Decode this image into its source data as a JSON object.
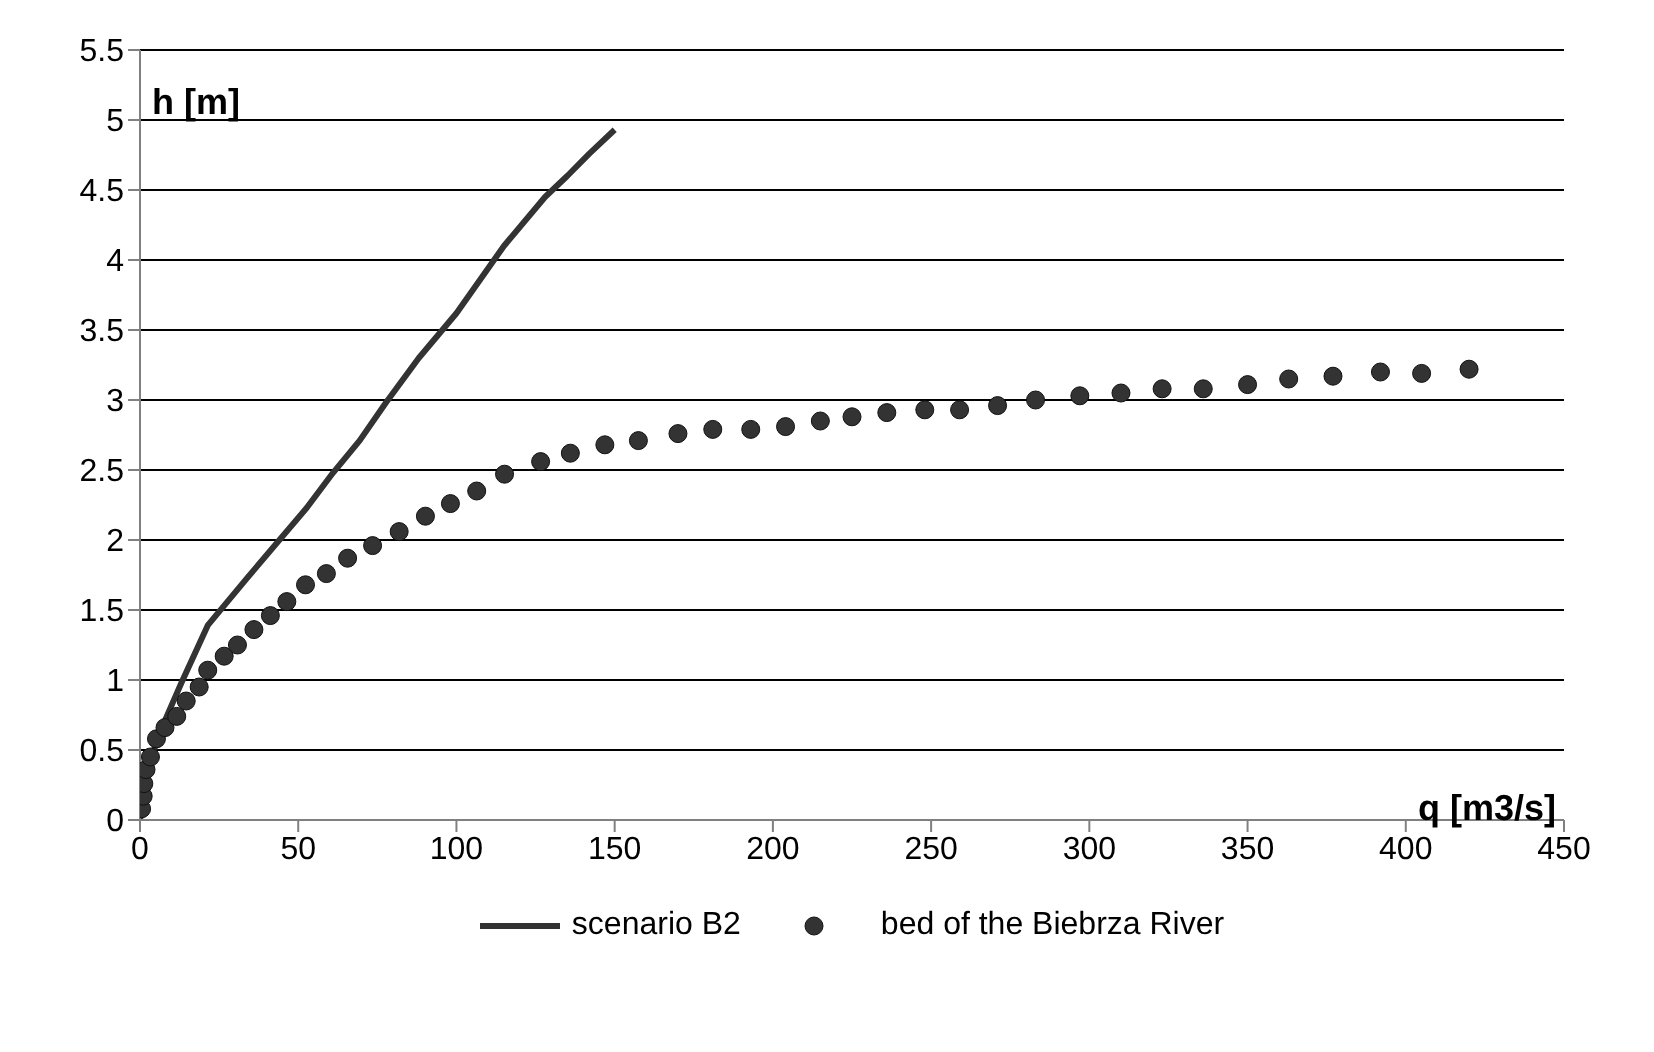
{
  "chart_data": {
    "type": "scatter",
    "xlabel": "q [m3/s]",
    "ylabel": "h [m]",
    "xlim": [
      0,
      450
    ],
    "xticks": [
      0,
      50,
      100,
      150,
      200,
      250,
      300,
      350,
      400,
      450
    ],
    "ylim": [
      0,
      5.5
    ],
    "yticks": [
      0,
      0.5,
      1,
      1.5,
      2,
      2.5,
      3,
      3.5,
      4,
      4.5,
      5,
      5.5
    ],
    "grid": "y",
    "legend": "bottom",
    "series": [
      {
        "name": "scenario B2",
        "type": "line",
        "color": "#333333",
        "line_style": "solid",
        "x": [
          0,
          2.7,
          6.9,
          13.1,
          21.4,
          33.9,
          52.7,
          61,
          69.4,
          77.7,
          88.1,
          100,
          115,
          128,
          135,
          142,
          150
        ],
        "values": [
          0,
          0.39,
          0.66,
          0.98,
          1.39,
          1.73,
          2.23,
          2.48,
          2.71,
          2.98,
          3.3,
          3.62,
          4.1,
          4.45,
          4.6,
          4.76,
          4.93
        ]
      },
      {
        "name": "bed of the Biebrza River",
        "marker": "circle",
        "color": "#333333",
        "x": [
          0.5,
          1,
          1.2,
          1.9,
          3.3,
          5.2,
          7.9,
          11.6,
          14.6,
          18.7,
          21.4,
          26.6,
          30.8,
          36,
          41.2,
          46.4,
          52.3,
          58.9,
          65.6,
          73.5,
          81.9,
          90.2,
          98.1,
          106.4,
          115.2,
          126.6,
          136,
          146.9,
          157.5,
          170,
          181,
          193,
          204,
          215,
          225,
          236,
          248,
          259,
          271,
          283,
          297,
          310,
          323,
          336,
          350,
          363,
          377,
          392,
          405,
          420
        ],
        "values": [
          0.08,
          0.17,
          0.26,
          0.36,
          0.45,
          0.58,
          0.66,
          0.74,
          0.85,
          0.95,
          1.07,
          1.17,
          1.25,
          1.36,
          1.46,
          1.56,
          1.68,
          1.76,
          1.87,
          1.96,
          2.06,
          2.17,
          2.26,
          2.35,
          2.47,
          2.56,
          2.62,
          2.68,
          2.71,
          2.76,
          2.79,
          2.79,
          2.81,
          2.85,
          2.88,
          2.91,
          2.93,
          2.93,
          2.96,
          3.0,
          3.03,
          3.05,
          3.08,
          3.08,
          3.11,
          3.15,
          3.17,
          3.2,
          3.19,
          3.22
        ]
      }
    ]
  }
}
